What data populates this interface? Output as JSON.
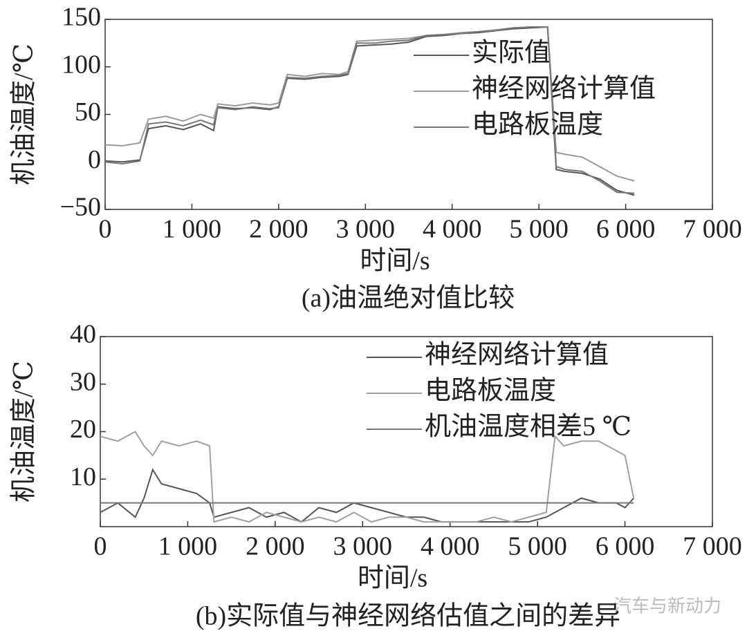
{
  "chart_data": [
    {
      "type": "line",
      "caption": "(a)油温绝对值比较",
      "xlabel": "时间/s",
      "ylabel": "机油温度/℃",
      "x": [
        0,
        200,
        400,
        500,
        700,
        900,
        1100,
        1250,
        1300,
        1500,
        1700,
        1900,
        2000,
        2100,
        2300,
        2500,
        2700,
        2800,
        2900,
        3100,
        3300,
        3500,
        3700,
        3900,
        4100,
        4300,
        4500,
        4700,
        4900,
        5100,
        5200,
        5300,
        5500,
        5700,
        5900,
        6100
      ],
      "series": [
        {
          "name": "实际值",
          "color": "#555555",
          "values": [
            1,
            0,
            2,
            35,
            38,
            34,
            40,
            33,
            58,
            56,
            57,
            55,
            58,
            88,
            87,
            89,
            90,
            92,
            122,
            123,
            124,
            126,
            132,
            133,
            135,
            136,
            138,
            140,
            141,
            142,
            -8,
            -10,
            -12,
            -18,
            -30,
            -35
          ]
        },
        {
          "name": "神经网络计算值",
          "color": "#9a9a9a",
          "values": [
            18,
            17,
            20,
            45,
            48,
            43,
            50,
            46,
            61,
            59,
            62,
            60,
            62,
            92,
            90,
            93,
            92,
            95,
            127,
            128,
            129,
            130,
            133,
            134,
            136,
            137,
            139,
            141,
            142,
            142,
            10,
            8,
            5,
            -5,
            -15,
            -20
          ]
        },
        {
          "name": "电路板温度",
          "color": "#777777",
          "values": [
            0,
            -2,
            1,
            40,
            42,
            38,
            44,
            39,
            57,
            55,
            58,
            56,
            57,
            89,
            88,
            90,
            91,
            93,
            125,
            125,
            127,
            128,
            133,
            134,
            135,
            137,
            138,
            141,
            142,
            142,
            -5,
            -8,
            -10,
            -20,
            -32,
            -33
          ]
        }
      ],
      "xlim": [
        0,
        7000
      ],
      "ylim": [
        -50,
        150
      ],
      "xticks": [
        0,
        {
          "value": 1000,
          "label": "1 000"
        },
        {
          "value": 2000,
          "label": "2 000"
        },
        {
          "value": 3000,
          "label": "3 000"
        },
        {
          "value": 4000,
          "label": "4 000"
        },
        {
          "value": 5000,
          "label": "5 000"
        },
        {
          "value": 6000,
          "label": "6 000"
        },
        {
          "value": 7000,
          "label": "7 000"
        }
      ],
      "yticks": [
        {
          "value": -50,
          "label": "−50"
        },
        0,
        50,
        100,
        150
      ],
      "legend": "upper right"
    },
    {
      "type": "line",
      "caption": "(b)实际值与神经网络估值之间的差异",
      "xlabel": "时间/s",
      "ylabel": "机油温度/℃",
      "x": [
        0,
        200,
        400,
        500,
        600,
        700,
        900,
        1100,
        1250,
        1300,
        1500,
        1700,
        1900,
        2100,
        2300,
        2500,
        2700,
        2900,
        3100,
        3300,
        3500,
        3700,
        3900,
        4100,
        4300,
        4500,
        4700,
        4900,
        5100,
        5200,
        5300,
        5500,
        5700,
        5900,
        6000,
        6100
      ],
      "series": [
        {
          "name": "神经网络计算值",
          "color": "#555555",
          "values": [
            3,
            5,
            2,
            6,
            12,
            9,
            8,
            7,
            5,
            2,
            3,
            4,
            2,
            3,
            1,
            4,
            3,
            5,
            4,
            3,
            2,
            2,
            1,
            1,
            1,
            1,
            1,
            1,
            2,
            3,
            4,
            6,
            5,
            5,
            4,
            6
          ]
        },
        {
          "name": "电路板温度",
          "color": "#a0a0a0",
          "values": [
            19,
            18,
            20,
            17,
            15,
            18,
            17,
            18,
            17,
            1,
            2,
            1,
            3,
            2,
            1,
            2,
            1,
            3,
            1,
            2,
            2,
            1,
            1,
            1,
            1,
            2,
            1,
            2,
            3,
            19,
            17,
            18,
            18,
            16,
            15,
            6
          ]
        },
        {
          "name": "机油温度相差5 ℃",
          "color": "#777777",
          "values": [
            5,
            5,
            5,
            5,
            5,
            5,
            5,
            5,
            5,
            5,
            5,
            5,
            5,
            5,
            5,
            5,
            5,
            5,
            5,
            5,
            5,
            5,
            5,
            5,
            5,
            5,
            5,
            5,
            5,
            5,
            5,
            5,
            5,
            5,
            5,
            5
          ]
        }
      ],
      "xlim": [
        0,
        7000
      ],
      "ylim": [
        0,
        40
      ],
      "xticks": [
        0,
        {
          "value": 1000,
          "label": "1 000"
        },
        {
          "value": 2000,
          "label": "2 000"
        },
        {
          "value": 3000,
          "label": "3 000"
        },
        {
          "value": 4000,
          "label": "4 000"
        },
        {
          "value": 5000,
          "label": "5 000"
        },
        {
          "value": 6000,
          "label": "6 000"
        },
        {
          "value": 7000,
          "label": "7 000"
        }
      ],
      "yticks": [
        10,
        20,
        30,
        40
      ],
      "legend": "upper right"
    }
  ],
  "watermark": "汽车与新动力"
}
